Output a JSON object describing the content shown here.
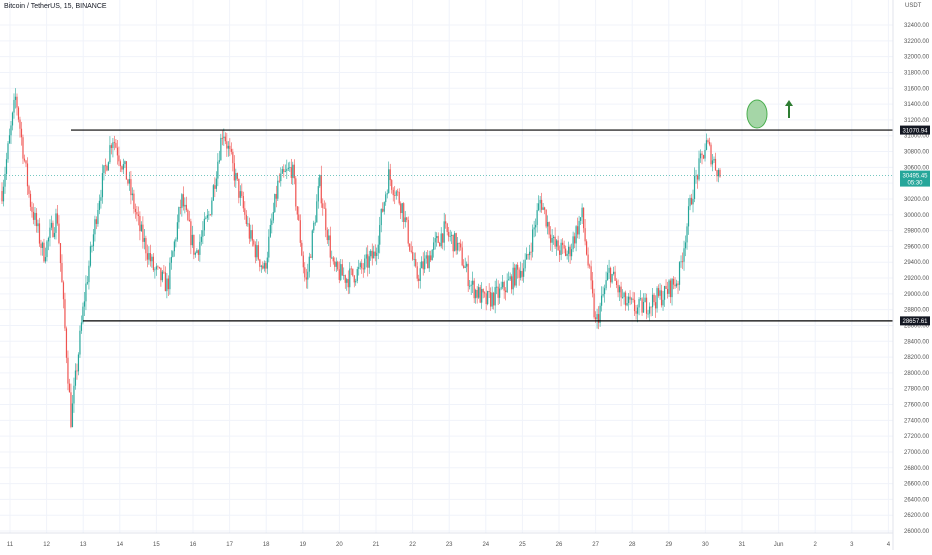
{
  "header": {
    "title": "Bitcoin / TetherUS, 15, BINANCE",
    "unit": "USDT"
  },
  "colors": {
    "up": "#26a69a",
    "down": "#ef5350",
    "level_line": "#000000",
    "price_label_bg": "#26a69a",
    "marker_fill": "#a5d6a7",
    "marker_stroke": "#4caf50",
    "arrow": "#2e7d32",
    "grid": "#f0f3fa",
    "axis_text": "#555555"
  },
  "price_axis": {
    "ticks": [
      "32400.00",
      "32200.00",
      "32000.00",
      "31800.00",
      "31600.00",
      "31400.00",
      "31200.00",
      "31000.00",
      "30800.00",
      "30600.00",
      "30400.00",
      "30200.00",
      "30000.00",
      "29800.00",
      "29600.00",
      "29400.00",
      "29200.00",
      "29000.00",
      "28800.00",
      "28600.00",
      "28400.00",
      "28200.00",
      "28000.00",
      "27800.00",
      "27600.00",
      "27400.00",
      "27200.00",
      "27000.00",
      "26800.00",
      "26600.00",
      "26400.00",
      "26200.00",
      "26000.00"
    ]
  },
  "date_axis": {
    "ticks": [
      "11",
      "12",
      "13",
      "14",
      "15",
      "16",
      "17",
      "18",
      "19",
      "20",
      "21",
      "22",
      "23",
      "24",
      "25",
      "26",
      "27",
      "28",
      "29",
      "30",
      "31",
      "Jun",
      "2",
      "3",
      "4"
    ]
  },
  "chart_data": {
    "type": "candlestick",
    "symbol": "Bitcoin / TetherUS",
    "interval": "15",
    "exchange": "BINANCE",
    "ylim": [
      26000,
      32500
    ],
    "x": [
      "11",
      "12",
      "13",
      "14",
      "15",
      "16",
      "17",
      "18",
      "19",
      "20",
      "21",
      "22",
      "23",
      "24",
      "25",
      "26",
      "27",
      "28",
      "29",
      "30"
    ],
    "close_path": [
      30300,
      31500,
      30200,
      29500,
      30000,
      27400,
      29000,
      30200,
      31000,
      30500,
      29800,
      29300,
      29100,
      30200,
      29500,
      30000,
      31100,
      30400,
      29700,
      29300,
      30400,
      30600,
      29100,
      30400,
      29300,
      29200,
      29300,
      29500,
      30500,
      30100,
      29200,
      29500,
      29800,
      29600,
      29100,
      28900,
      29000,
      29200,
      29400,
      30200,
      29600,
      29500,
      30000,
      28600,
      29300,
      28900,
      28800,
      28900,
      29000,
      29200,
      30300,
      30900,
      30500
    ],
    "levels": [
      {
        "label": "31070.94",
        "value": 31070.94
      },
      {
        "label": "28657.61",
        "value": 28657.61
      }
    ],
    "last_price": {
      "value": 30495.45,
      "label": "30495.45",
      "countdown": "05:30"
    },
    "annotations": [
      "green-ellipse",
      "up-arrow"
    ]
  }
}
